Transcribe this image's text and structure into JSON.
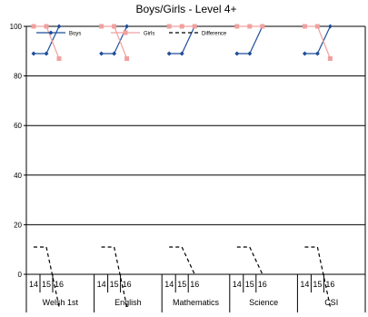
{
  "chart_data": {
    "type": "line",
    "title": "Boys/Girls - Level 4+",
    "xlabel": "",
    "ylabel": "",
    "ylim": [
      0,
      100
    ],
    "yticks": [
      "0",
      "20",
      "40",
      "60",
      "80",
      "100"
    ],
    "grid": true,
    "legend_placement": "top",
    "groups": [
      "Welsh 1st",
      "English",
      "Mathematics",
      "Science",
      "CSI"
    ],
    "x_ticks": [
      "14",
      "15",
      "16"
    ],
    "series": [
      {
        "name": "Boys",
        "color": "#1F4E99",
        "marker": "diamond",
        "style": "solid",
        "values": [
          [
            89,
            89,
            100
          ],
          [
            89,
            89,
            100
          ],
          [
            89,
            89,
            100
          ],
          [
            89,
            89,
            100
          ],
          [
            89,
            89,
            100
          ]
        ]
      },
      {
        "name": "Girls",
        "color": "#F0A0A0",
        "marker": "square",
        "style": "solid",
        "values": [
          [
            100,
            100,
            87
          ],
          [
            100,
            100,
            87
          ],
          [
            100,
            100,
            100
          ],
          [
            100,
            100,
            100
          ],
          [
            100,
            100,
            87
          ]
        ]
      },
      {
        "name": "Difference",
        "color": "#000000",
        "marker": "none",
        "style": "dashed",
        "values": [
          [
            11,
            11,
            -13
          ],
          [
            11,
            11,
            -13
          ],
          [
            11,
            11,
            0
          ],
          [
            11,
            11,
            0
          ],
          [
            11,
            11,
            -13
          ]
        ]
      }
    ]
  }
}
